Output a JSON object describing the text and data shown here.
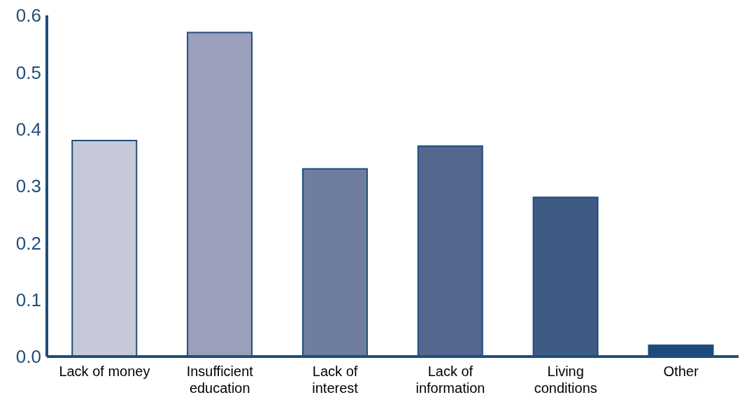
{
  "chart_data": {
    "type": "bar",
    "categories": [
      "Lack of money",
      "Insufficient education",
      "Lack of interest",
      "Lack of information",
      "Living conditions",
      "Other"
    ],
    "values": [
      0.38,
      0.57,
      0.33,
      0.37,
      0.28,
      0.02
    ],
    "colors": [
      "#c8c9d8",
      "#9a9fbb",
      "#6f7d9f",
      "#53678f",
      "#3e5a85",
      "#1b4b7c"
    ],
    "ylim": [
      0,
      0.6
    ],
    "yticks": [
      {
        "value": 0,
        "label": "0.0"
      },
      {
        "value": 0.1,
        "label": "0.1"
      },
      {
        "value": 0.2,
        "label": "0.2"
      },
      {
        "value": 0.3,
        "label": "0.3"
      },
      {
        "value": 0.4,
        "label": "0.4"
      },
      {
        "value": 0.5,
        "label": "0.5"
      },
      {
        "value": 0.6,
        "label": "0.6"
      }
    ],
    "grid": false
  }
}
